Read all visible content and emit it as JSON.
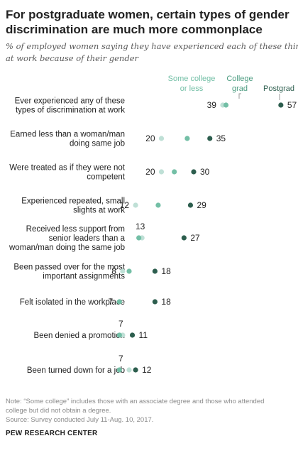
{
  "header": {
    "title_line1": "For postgraduate  women, certain types of gender",
    "title_line2": "discrimination are much more commonplace",
    "subtitle_line1": "% of employed women saying they have experienced each of these things",
    "subtitle_line2": "at work because of their gender"
  },
  "legend": {
    "some_college_line1": "Some college",
    "some_college_line2": "or less",
    "college_grad_line1": "College",
    "college_grad_line2": "grad",
    "postgrad": "Postgrad"
  },
  "colors": {
    "some_college": "#bfe0d6",
    "college_grad": "#73bfa6",
    "postgrad": "#2d5e4e",
    "legend_some_college_text": "#73bfa6",
    "legend_college_grad_text": "#4c9c80",
    "legend_postgrad_text": "#2d5e4e"
  },
  "chart_data": {
    "type": "dot",
    "series": [
      {
        "name": "Some college or less"
      },
      {
        "name": "College grad"
      },
      {
        "name": "Postgrad"
      }
    ],
    "rows": [
      {
        "label_lines": [
          "Ever experienced any of these",
          "types of discrimination at work"
        ],
        "some_college": 39,
        "college_grad": 40,
        "postgrad": 57,
        "left_label": "39",
        "right_label": "57"
      },
      {
        "label_lines": [
          "Earned less than a woman/man",
          "doing same job"
        ],
        "some_college": 20,
        "college_grad": 28,
        "postgrad": 35,
        "left_label": "20",
        "right_label": "35"
      },
      {
        "label_lines": [
          "Were treated as if they were not",
          "competent"
        ],
        "some_college": 20,
        "college_grad": 24,
        "postgrad": 30,
        "left_label": "20",
        "right_label": "30"
      },
      {
        "label_lines": [
          "Experienced repeated, small",
          "slights at work"
        ],
        "some_college": 12,
        "college_grad": 19,
        "postgrad": 29,
        "left_label": "12",
        "right_label": "29"
      },
      {
        "label_lines": [
          "Received less support from",
          "senior leaders than a",
          "woman/man doing the same job"
        ],
        "some_college": 14,
        "college_grad": 13,
        "postgrad": 27,
        "top_label": "13",
        "right_label": "27"
      },
      {
        "label_lines": [
          "Been passed over for the most",
          "important assignments"
        ],
        "some_college": 8,
        "college_grad": 10,
        "postgrad": 18,
        "left_label": "8",
        "right_label": "18"
      },
      {
        "label_lines": [
          "Felt isolated in the workplace"
        ],
        "some_college": 7,
        "college_grad": 7,
        "postgrad": 18,
        "left_label": "7",
        "right_label": "18"
      },
      {
        "label_lines": [
          "Been denied a promotion"
        ],
        "some_college": 8,
        "college_grad": 7,
        "postgrad": 11,
        "top_label": "7",
        "right_label": "11"
      },
      {
        "label_lines": [
          "Been turned down for a job"
        ],
        "some_college": 10,
        "college_grad": 7,
        "postgrad": 12,
        "top_label": "7",
        "right_label": "12"
      }
    ]
  },
  "footer": {
    "note_line1": "Note: “Some college” includes those with an associate degree and those who attended",
    "note_line2": "college but did not obtain a degree.",
    "source": "Source: Survey conducted July 11-Aug. 10, 2017.",
    "org": "PEW RESEARCH CENTER"
  }
}
